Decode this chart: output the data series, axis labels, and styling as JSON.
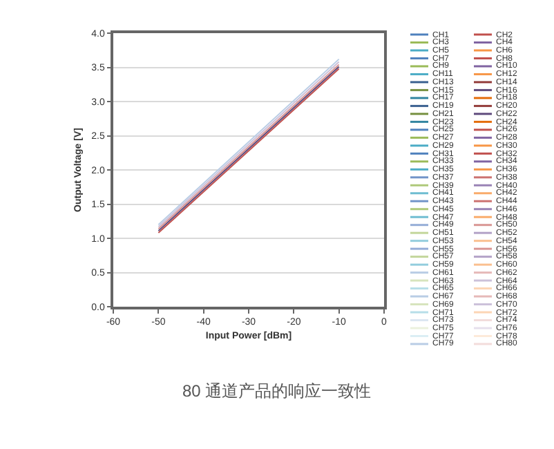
{
  "chart_data": {
    "type": "line",
    "xlabel": "Input Power [dBm]",
    "ylabel": "Output Voltage [V]",
    "x": [
      -50,
      -10
    ],
    "xlim": [
      -60,
      0
    ],
    "xticks": [
      -60,
      -50,
      -40,
      -30,
      -20,
      -10,
      0
    ],
    "ylim": [
      0,
      4
    ],
    "yticks": [
      {
        "value": 0,
        "label": "0.0"
      },
      {
        "value": 0.5,
        "label": "0.5"
      },
      {
        "value": 1,
        "label": "1.0"
      },
      {
        "value": 1.5,
        "label": "1.5"
      },
      {
        "value": 2,
        "label": "2.0"
      },
      {
        "value": 2.5,
        "label": "2.5"
      },
      {
        "value": 3,
        "label": "3.0"
      },
      {
        "value": 3.5,
        "label": "3.5"
      },
      {
        "value": 4,
        "label": "4.0"
      }
    ],
    "grid": "y",
    "legend": "right",
    "marker": "none",
    "line_style": "solid",
    "annotations": [
      "80 通道产品的响应一致性"
    ],
    "series": [
      {
        "name": "CH1",
        "color": "#4F81BD",
        "values": [
          null,
          null
        ]
      },
      {
        "name": "CH2",
        "color": "#C0504D",
        "values": [
          1.08,
          3.48
        ]
      },
      {
        "name": "CH3",
        "color": "#9BBB59",
        "values": [
          null,
          null
        ]
      },
      {
        "name": "CH4",
        "color": "#8064A2",
        "values": [
          null,
          null
        ]
      },
      {
        "name": "CH5",
        "color": "#4BACC6",
        "values": [
          null,
          null
        ]
      },
      {
        "name": "CH6",
        "color": "#F79646",
        "values": [
          null,
          null
        ]
      },
      {
        "name": "CH7",
        "color": "#4F81BD",
        "values": [
          null,
          null
        ]
      },
      {
        "name": "CH8",
        "color": "#C0504D",
        "values": [
          null,
          null
        ]
      },
      {
        "name": "CH9",
        "color": "#9BBB59",
        "values": [
          null,
          null
        ]
      },
      {
        "name": "CH10",
        "color": "#8064A2",
        "values": [
          null,
          null
        ]
      },
      {
        "name": "CH11",
        "color": "#4BACC6",
        "values": [
          null,
          null
        ]
      },
      {
        "name": "CH12",
        "color": "#F79646",
        "values": [
          null,
          null
        ]
      },
      {
        "name": "CH13",
        "color": "#3B6190",
        "values": [
          null,
          null
        ]
      },
      {
        "name": "CH14",
        "color": "#933C3A",
        "values": [
          null,
          null
        ]
      },
      {
        "name": "CH15",
        "color": "#76903F",
        "values": [
          null,
          null
        ]
      },
      {
        "name": "CH16",
        "color": "#5E4A7C",
        "values": [
          1.11,
          3.51
        ]
      },
      {
        "name": "CH17",
        "color": "#3185A0",
        "values": [
          null,
          null
        ]
      },
      {
        "name": "CH18",
        "color": "#E46C0A",
        "values": [
          null,
          null
        ]
      },
      {
        "name": "CH19",
        "color": "#3B6190",
        "values": [
          null,
          null
        ]
      },
      {
        "name": "CH20",
        "color": "#933C3A",
        "values": [
          null,
          null
        ]
      },
      {
        "name": "CH21",
        "color": "#76903F",
        "values": [
          null,
          null
        ]
      },
      {
        "name": "CH22",
        "color": "#5E4A7C",
        "values": [
          null,
          null
        ]
      },
      {
        "name": "CH23",
        "color": "#3185A0",
        "values": [
          null,
          null
        ]
      },
      {
        "name": "CH24",
        "color": "#E46C0A",
        "values": [
          null,
          null
        ]
      },
      {
        "name": "CH25",
        "color": "#4F81BD",
        "values": [
          null,
          null
        ]
      },
      {
        "name": "CH26",
        "color": "#C0504D",
        "values": [
          null,
          null
        ]
      },
      {
        "name": "CH27",
        "color": "#9BBB59",
        "values": [
          null,
          null
        ]
      },
      {
        "name": "CH28",
        "color": "#8064A2",
        "values": [
          null,
          null
        ]
      },
      {
        "name": "CH29",
        "color": "#4BACC6",
        "values": [
          null,
          null
        ]
      },
      {
        "name": "CH30",
        "color": "#F79646",
        "values": [
          null,
          null
        ]
      },
      {
        "name": "CH31",
        "color": "#4F81BD",
        "values": [
          null,
          null
        ]
      },
      {
        "name": "CH32",
        "color": "#C0504D",
        "values": [
          null,
          null
        ]
      },
      {
        "name": "CH33",
        "color": "#9BBB59",
        "values": [
          null,
          null
        ]
      },
      {
        "name": "CH34",
        "color": "#8064A2",
        "values": [
          null,
          null
        ]
      },
      {
        "name": "CH35",
        "color": "#4BACC6",
        "values": [
          null,
          null
        ]
      },
      {
        "name": "CH36",
        "color": "#F79646",
        "values": [
          null,
          null
        ]
      },
      {
        "name": "CH37",
        "color": "#7295C9",
        "values": [
          null,
          null
        ]
      },
      {
        "name": "CH38",
        "color": "#CD7371",
        "values": [
          null,
          null
        ]
      },
      {
        "name": "CH39",
        "color": "#AFC97A",
        "values": [
          null,
          null
        ]
      },
      {
        "name": "CH40",
        "color": "#9983B5",
        "values": [
          null,
          null
        ]
      },
      {
        "name": "CH41",
        "color": "#6FBDD1",
        "values": [
          null,
          null
        ]
      },
      {
        "name": "CH42",
        "color": "#F9AB6B",
        "values": [
          null,
          null
        ]
      },
      {
        "name": "CH43",
        "color": "#7295C9",
        "values": [
          null,
          null
        ]
      },
      {
        "name": "CH44",
        "color": "#CD7371",
        "values": [
          null,
          null
        ]
      },
      {
        "name": "CH45",
        "color": "#AFC97A",
        "values": [
          null,
          null
        ]
      },
      {
        "name": "CH46",
        "color": "#9983B5",
        "values": [
          null,
          null
        ]
      },
      {
        "name": "CH47",
        "color": "#6FBDD1",
        "values": [
          null,
          null
        ]
      },
      {
        "name": "CH48",
        "color": "#F9AB6B",
        "values": [
          null,
          null
        ]
      },
      {
        "name": "CH49",
        "color": "#95ADD7",
        "values": [
          null,
          null
        ]
      },
      {
        "name": "CH50",
        "color": "#D99694",
        "values": [
          1.14,
          3.54
        ]
      },
      {
        "name": "CH51",
        "color": "#C3D69B",
        "values": [
          null,
          null
        ]
      },
      {
        "name": "CH52",
        "color": "#B3A2C7",
        "values": [
          null,
          null
        ]
      },
      {
        "name": "CH53",
        "color": "#93CDDD",
        "values": [
          null,
          null
        ]
      },
      {
        "name": "CH54",
        "color": "#FAC090",
        "values": [
          null,
          null
        ]
      },
      {
        "name": "CH55",
        "color": "#95ADD7",
        "values": [
          null,
          null
        ]
      },
      {
        "name": "CH56",
        "color": "#D99694",
        "values": [
          null,
          null
        ]
      },
      {
        "name": "CH57",
        "color": "#C3D69B",
        "values": [
          null,
          null
        ]
      },
      {
        "name": "CH58",
        "color": "#B3A2C7",
        "values": [
          null,
          null
        ]
      },
      {
        "name": "CH59",
        "color": "#93CDDD",
        "values": [
          null,
          null
        ]
      },
      {
        "name": "CH60",
        "color": "#FAC090",
        "values": [
          null,
          null
        ]
      },
      {
        "name": "CH61",
        "color": "#B9CDE5",
        "values": [
          null,
          null
        ]
      },
      {
        "name": "CH62",
        "color": "#E6B9B8",
        "values": [
          null,
          null
        ]
      },
      {
        "name": "CH63",
        "color": "#D7E4BD",
        "values": [
          null,
          null
        ]
      },
      {
        "name": "CH64",
        "color": "#CCC1DA",
        "values": [
          null,
          null
        ]
      },
      {
        "name": "CH65",
        "color": "#B7DEE8",
        "values": [
          null,
          null
        ]
      },
      {
        "name": "CH66",
        "color": "#FCD5B5",
        "values": [
          null,
          null
        ]
      },
      {
        "name": "CH67",
        "color": "#B9CDE5",
        "values": [
          null,
          null
        ]
      },
      {
        "name": "CH68",
        "color": "#E6B9B8",
        "values": [
          null,
          null
        ]
      },
      {
        "name": "CH69",
        "color": "#D7E4BD",
        "values": [
          null,
          null
        ]
      },
      {
        "name": "CH70",
        "color": "#CCC1DA",
        "values": [
          1.17,
          3.58
        ]
      },
      {
        "name": "CH71",
        "color": "#B7DEE8",
        "values": [
          null,
          null
        ]
      },
      {
        "name": "CH72",
        "color": "#FCD5B5",
        "values": [
          null,
          null
        ]
      },
      {
        "name": "CH73",
        "color": "#DCE6F2",
        "values": [
          null,
          null
        ]
      },
      {
        "name": "CH74",
        "color": "#F2DCDB",
        "values": [
          null,
          null
        ]
      },
      {
        "name": "CH75",
        "color": "#EBF1DE",
        "values": [
          null,
          null
        ]
      },
      {
        "name": "CH76",
        "color": "#E6E0EC",
        "values": [
          null,
          null
        ]
      },
      {
        "name": "CH77",
        "color": "#DBEEF4",
        "values": [
          null,
          null
        ]
      },
      {
        "name": "CH78",
        "color": "#FDEADA",
        "values": [
          null,
          null
        ]
      },
      {
        "name": "CH79",
        "color": "#B9CDE5",
        "values": [
          1.2,
          3.62
        ]
      },
      {
        "name": "CH80",
        "color": "#F2DCDB",
        "values": [
          null,
          null
        ]
      }
    ]
  }
}
